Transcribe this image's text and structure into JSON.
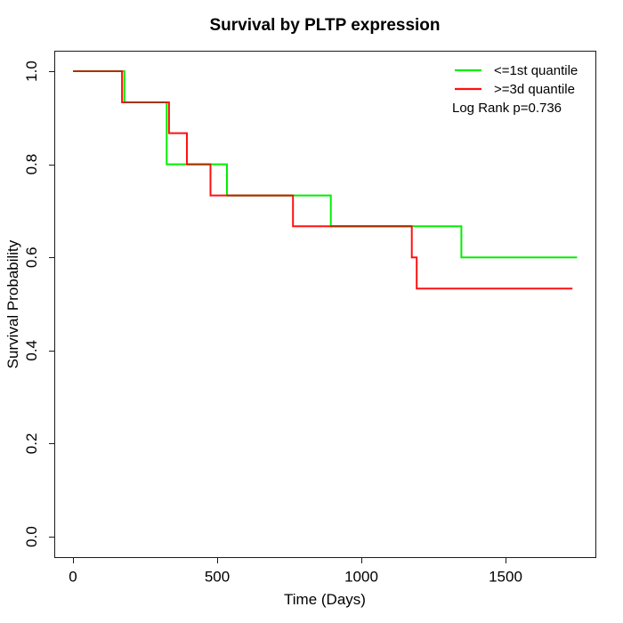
{
  "title": "Survival by PLTP expression",
  "axes": {
    "x": {
      "label": "Time (Days)",
      "ticks": [
        0,
        500,
        1000,
        1500
      ]
    },
    "y": {
      "label": "Survival Probability",
      "ticks": [
        "0.0",
        "0.2",
        "0.4",
        "0.6",
        "0.8",
        "1.0"
      ]
    }
  },
  "legend": {
    "entries": [
      {
        "label": "<=1st quantile",
        "color": "#00ee00"
      },
      {
        "label": ">=3d quantile",
        "color": "#ff1111"
      }
    ],
    "note": "Log Rank p=0.736"
  },
  "chart_data": {
    "type": "line",
    "subtype": "kaplan-meier-step",
    "title": "Survival by PLTP expression",
    "xlabel": "Time (Days)",
    "ylabel": "Survival Probability",
    "xlim": [
      0,
      1750
    ],
    "ylim": [
      0.0,
      1.0
    ],
    "x_ticks": [
      0,
      500,
      1000,
      1500
    ],
    "y_ticks": [
      0.0,
      0.2,
      0.4,
      0.6,
      0.8,
      1.0
    ],
    "grid": false,
    "legend_position": "top-right",
    "annotation": "Log Rank p=0.736",
    "overlap_color": "#a53200",
    "series": [
      {
        "name": "<=1st quantile",
        "color": "#00ee00",
        "points_note": "each point = [day, survival level after that day]; last point = end of follow-up",
        "points": [
          [
            0,
            1.0
          ],
          [
            178,
            0.933
          ],
          [
            325,
            0.8
          ],
          [
            534,
            0.733
          ],
          [
            894,
            0.667
          ],
          [
            1347,
            0.6
          ],
          [
            1748,
            0.6
          ]
        ]
      },
      {
        "name": ">=3d quantile",
        "color": "#ff1111",
        "points_note": "each point = [day, survival level after that day]; last point = end of follow-up",
        "points": [
          [
            0,
            1.0
          ],
          [
            170,
            0.933
          ],
          [
            333,
            0.867
          ],
          [
            395,
            0.8
          ],
          [
            477,
            0.733
          ],
          [
            763,
            0.667
          ],
          [
            1175,
            0.6
          ],
          [
            1192,
            0.533
          ],
          [
            1732,
            0.533
          ]
        ]
      }
    ]
  }
}
